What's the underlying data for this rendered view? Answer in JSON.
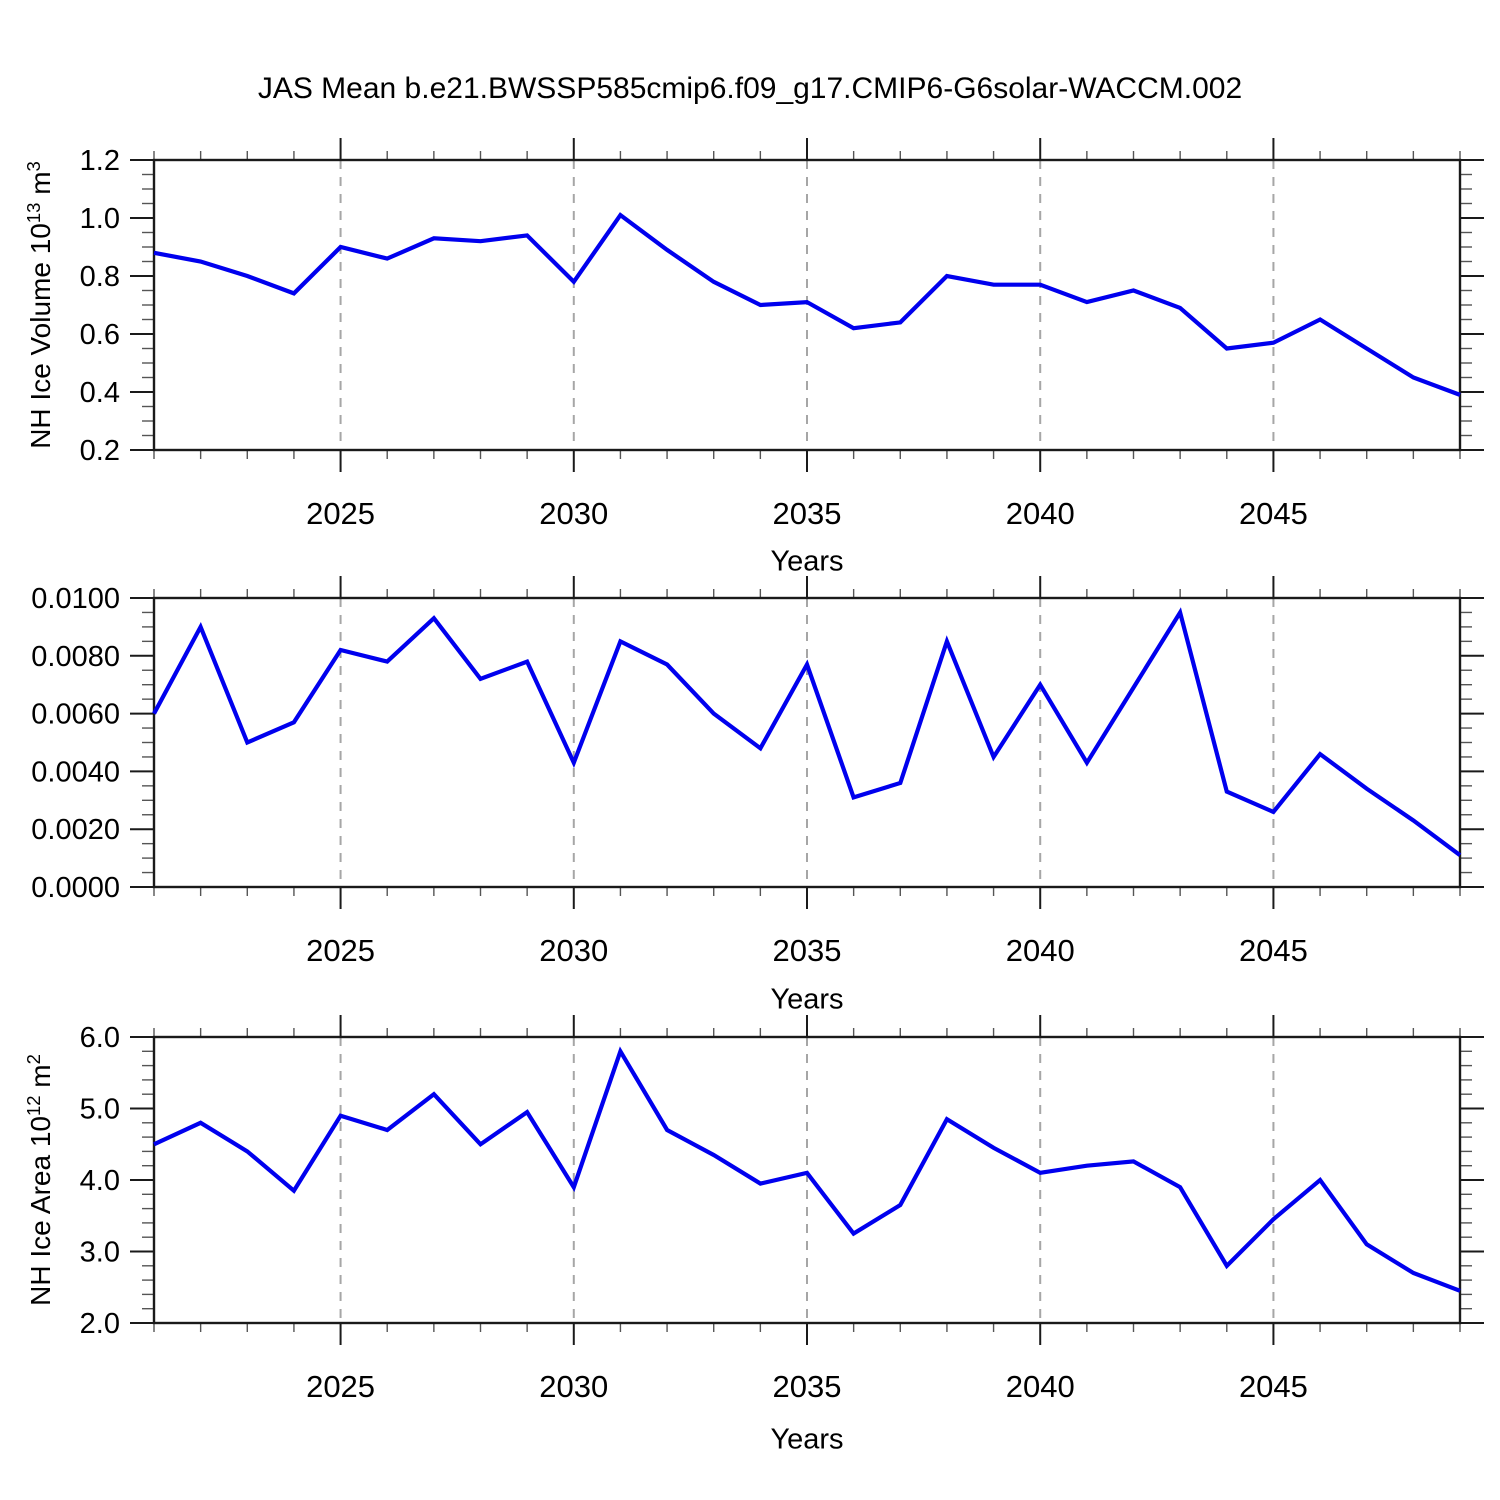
{
  "title": "JAS Mean b.e21.BWSSP585cmip6.f09_g17.CMIP6-G6solar-WACCM.002",
  "x_axis_label": "Years",
  "colors": {
    "line": "#0000EE",
    "grid": "#A6A6A6",
    "axis": "#1A1A1A",
    "minor_tick": "#555555",
    "text": "#000000",
    "background": "#FFFFFF"
  },
  "x": {
    "years": [
      2021,
      2022,
      2023,
      2024,
      2025,
      2026,
      2027,
      2028,
      2029,
      2030,
      2031,
      2032,
      2033,
      2034,
      2035,
      2036,
      2037,
      2038,
      2039,
      2040,
      2041,
      2042,
      2043,
      2044,
      2045,
      2046,
      2047,
      2048,
      2049
    ],
    "range": [
      2021,
      2049
    ],
    "major_ticks": [
      2025,
      2030,
      2035,
      2040,
      2045
    ],
    "major_tick_labels": [
      "2025",
      "2030",
      "2035",
      "2040",
      "2045"
    ],
    "minor_step": 1,
    "gridlines_at_major": true
  },
  "chart_data": [
    {
      "type": "line",
      "name": "nh-ice-volume",
      "y_title_parts": [
        {
          "t": "NH Ice Volume 10"
        },
        {
          "t": "13",
          "sup": true
        },
        {
          "t": " m"
        },
        {
          "t": "3",
          "sup": true
        }
      ],
      "ylim": [
        0.2,
        1.2
      ],
      "y_major_values": [
        0.2,
        0.4,
        0.6,
        0.8,
        1.0,
        1.2
      ],
      "y_tick_labels": [
        "0.2",
        "0.4",
        "0.6",
        "0.8",
        "1.0",
        "1.2"
      ],
      "y_minor_step": 0.05,
      "values": [
        0.88,
        0.85,
        0.8,
        0.74,
        0.9,
        0.86,
        0.93,
        0.92,
        0.94,
        0.78,
        1.01,
        0.89,
        0.78,
        0.7,
        0.71,
        0.62,
        0.64,
        0.8,
        0.77,
        0.77,
        0.71,
        0.75,
        0.69,
        0.55,
        0.57,
        0.65,
        0.55,
        0.45,
        0.39
      ]
    },
    {
      "type": "line",
      "name": "middle-series",
      "y_title_parts": [],
      "ylim": [
        0.0,
        0.01
      ],
      "y_major_values": [
        0.0,
        0.002,
        0.004,
        0.006,
        0.008,
        0.01
      ],
      "y_tick_labels": [
        "0.0000",
        "0.0020",
        "0.0040",
        "0.0060",
        "0.0080",
        "0.0100"
      ],
      "y_minor_step": 0.0005,
      "values": [
        0.006,
        0.009,
        0.005,
        0.0057,
        0.0082,
        0.0078,
        0.0093,
        0.0072,
        0.0078,
        0.0043,
        0.0085,
        0.0077,
        0.006,
        0.0048,
        0.0077,
        0.0031,
        0.0036,
        0.0085,
        0.0045,
        0.007,
        0.0043,
        0.0069,
        0.0095,
        0.0033,
        0.0026,
        0.0046,
        0.0034,
        0.0023,
        0.0011
      ]
    },
    {
      "type": "line",
      "name": "nh-ice-area",
      "y_title_parts": [
        {
          "t": "NH Ice Area 10"
        },
        {
          "t": "12",
          "sup": true
        },
        {
          "t": " m"
        },
        {
          "t": "2",
          "sup": true
        }
      ],
      "ylim": [
        2.0,
        6.0
      ],
      "y_major_values": [
        2.0,
        3.0,
        4.0,
        5.0,
        6.0
      ],
      "y_tick_labels": [
        "2.0",
        "3.0",
        "4.0",
        "5.0",
        "6.0"
      ],
      "y_minor_step": 0.2,
      "values": [
        4.5,
        4.8,
        4.4,
        3.85,
        4.9,
        4.7,
        5.2,
        4.5,
        4.95,
        3.9,
        5.8,
        4.7,
        4.35,
        3.95,
        4.1,
        3.25,
        3.65,
        4.85,
        4.45,
        4.1,
        4.2,
        4.26,
        3.9,
        2.8,
        3.45,
        4.0,
        3.1,
        2.7,
        2.45
      ]
    }
  ]
}
